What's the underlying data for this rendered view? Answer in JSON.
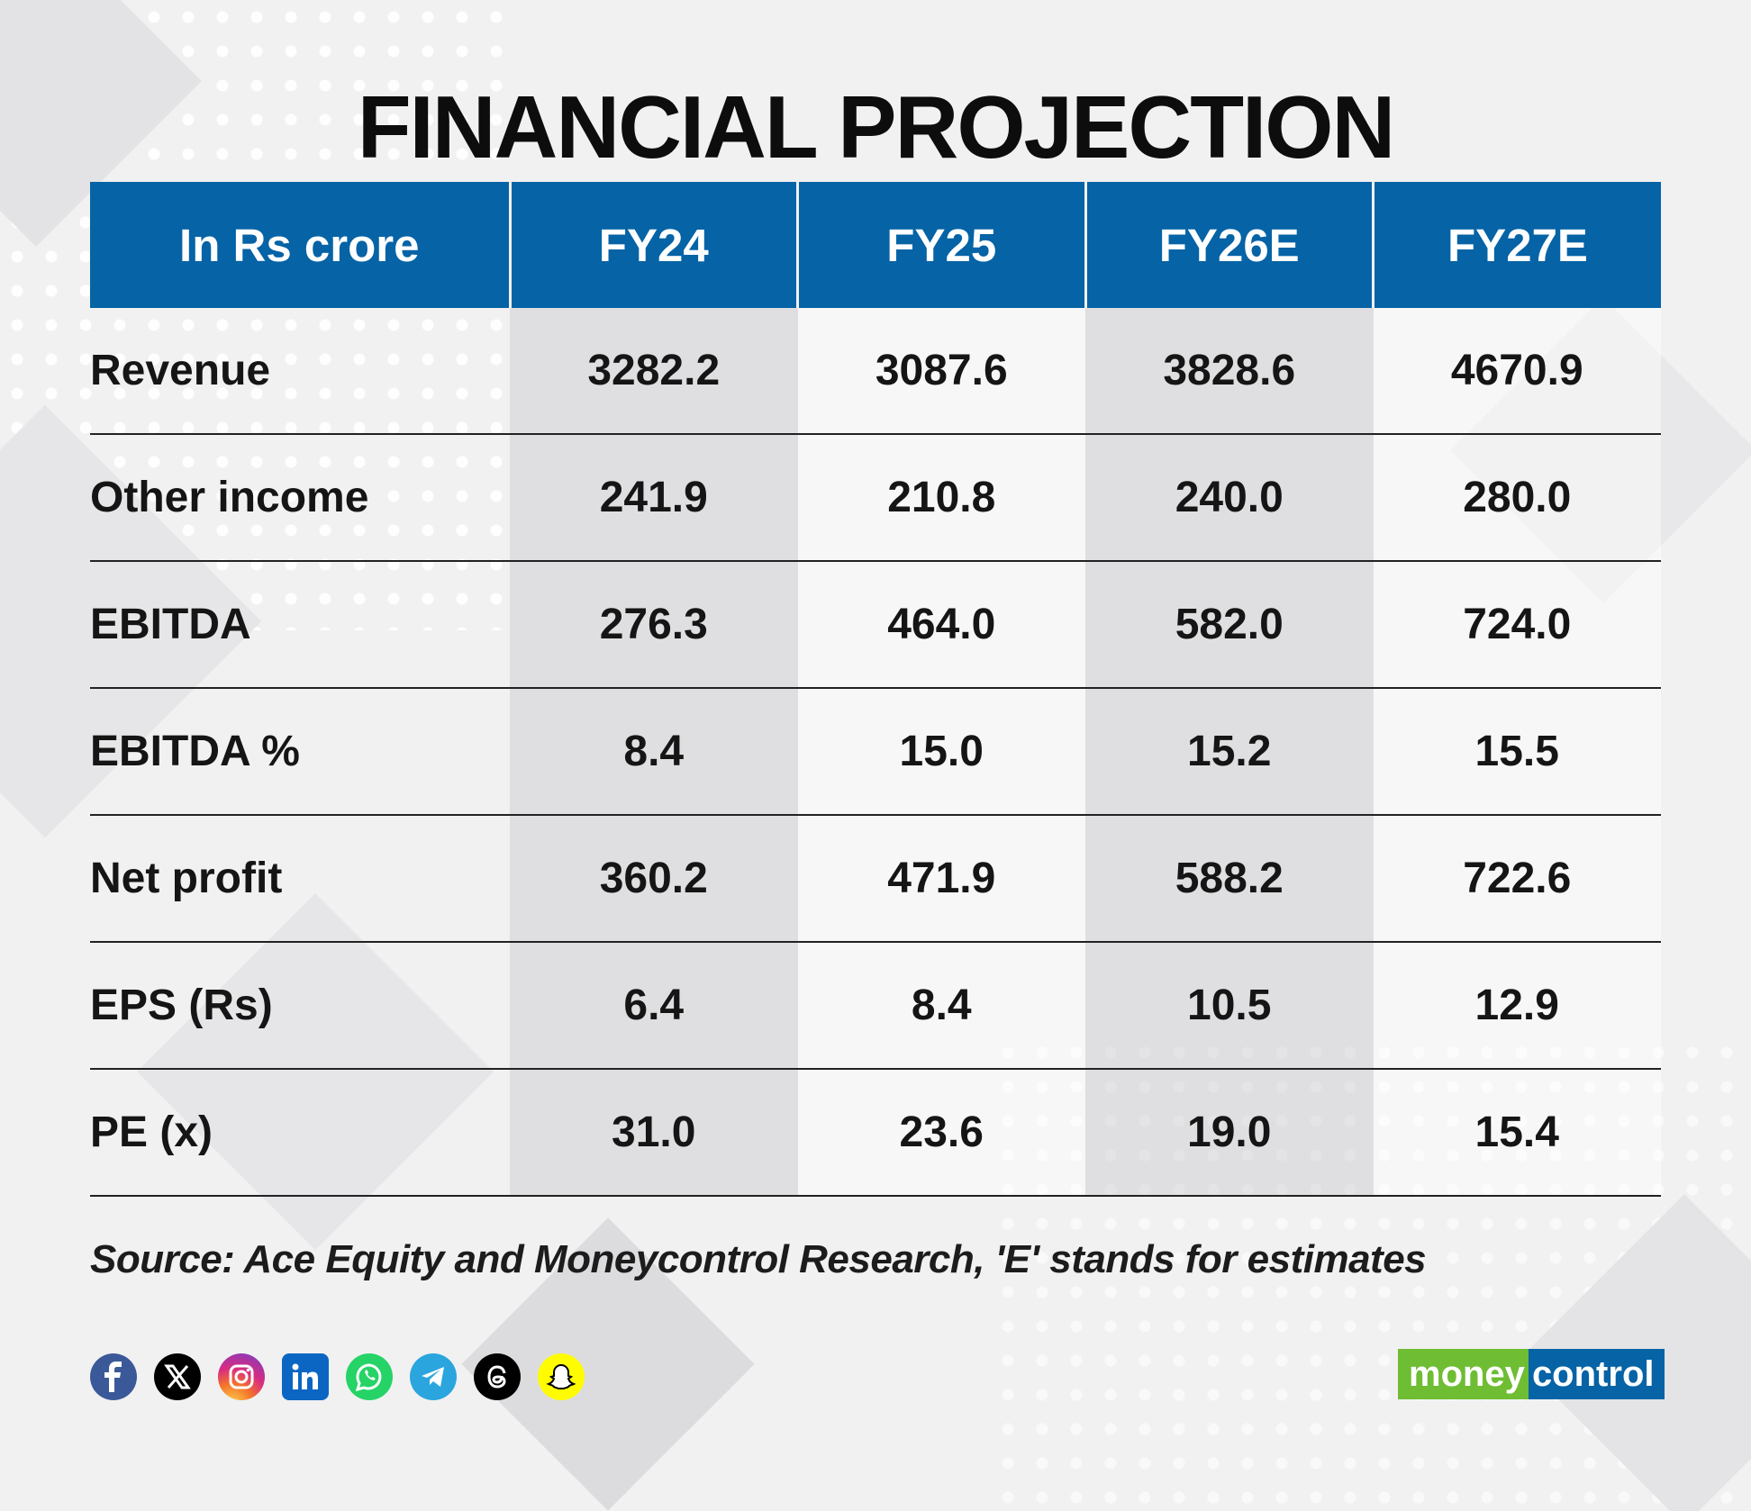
{
  "title": "FINANCIAL PROJECTION",
  "table": {
    "headers": [
      "In Rs crore",
      "FY24",
      "FY25",
      "FY26E",
      "FY27E"
    ],
    "rows": [
      {
        "label": "Revenue",
        "values": [
          "3282.2",
          "3087.6",
          "3828.6",
          "4670.9"
        ]
      },
      {
        "label": "Other income",
        "values": [
          "241.9",
          "210.8",
          "240.0",
          "280.0"
        ]
      },
      {
        "label": "EBITDA",
        "values": [
          "276.3",
          "464.0",
          "582.0",
          "724.0"
        ]
      },
      {
        "label": "EBITDA %",
        "values": [
          "8.4",
          "15.0",
          "15.2",
          "15.5"
        ]
      },
      {
        "label": "Net profit",
        "values": [
          "360.2",
          "471.9",
          "588.2",
          "722.6"
        ]
      },
      {
        "label": "EPS (Rs)",
        "values": [
          "6.4",
          "8.4",
          "10.5",
          "12.9"
        ]
      },
      {
        "label": "PE (x)",
        "values": [
          "31.0",
          "23.6",
          "19.0",
          "15.4"
        ]
      }
    ]
  },
  "source": "Source: Ace Equity and Moneycontrol Research, 'E' stands for estimates",
  "social_icons": [
    "facebook-icon",
    "x-icon",
    "instagram-icon",
    "linkedin-icon",
    "whatsapp-icon",
    "telegram-icon",
    "threads-icon",
    "snapchat-icon"
  ],
  "logo": {
    "part1": "money",
    "part2": "control"
  },
  "colors": {
    "header_bg": "#0563a6",
    "logo_green": "#6fbd33",
    "logo_blue": "#0563a6"
  }
}
